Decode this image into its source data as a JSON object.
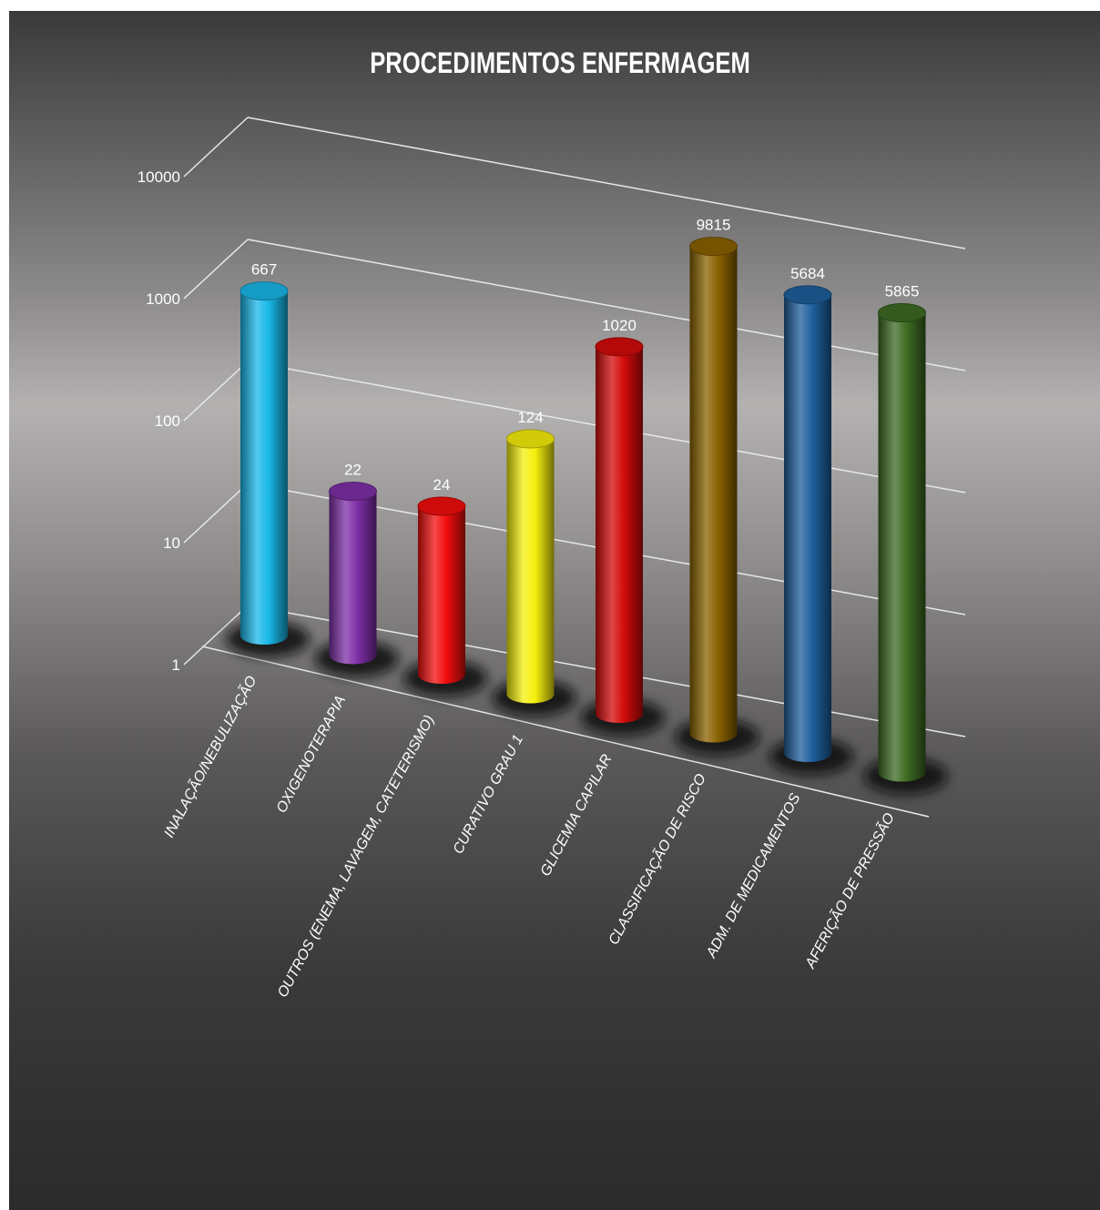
{
  "chart_data": {
    "type": "bar",
    "style": "3d-cylinder",
    "title": "PROCEDIMENTOS ENFERMAGEM",
    "y_scale": "log",
    "ylim": [
      1,
      10000
    ],
    "y_ticks": [
      "1",
      "10",
      "100",
      "1000",
      "10000"
    ],
    "grid": true,
    "legend": "none",
    "categories": [
      "INALAÇÃO/NEBULIZAÇÃO",
      "OXIGENOTERAPIA",
      "OUTROS (ENEMA, LAVAGEM, CATETERISMO)",
      "CURATIVO GRAU 1",
      "GLICEMIA CAPILAR",
      "CLASSIFICAÇÃO DE RISCO",
      "ADM. DE MEDICAMENTOS",
      "AFERIÇÃO DE PRESSÃO"
    ],
    "values": [
      667,
      22,
      24,
      124,
      1020,
      9815,
      5684,
      5865
    ],
    "value_labels": [
      "667",
      "22",
      "24",
      "124",
      "1020",
      "9815",
      "5684",
      "5865"
    ],
    "colors": [
      "#19b7e8",
      "#7e2fa8",
      "#f20d0d",
      "#f6ef0c",
      "#d40a0a",
      "#8a6200",
      "#1e5f9c",
      "#3d6b22"
    ],
    "background": "#6e6c6c"
  }
}
